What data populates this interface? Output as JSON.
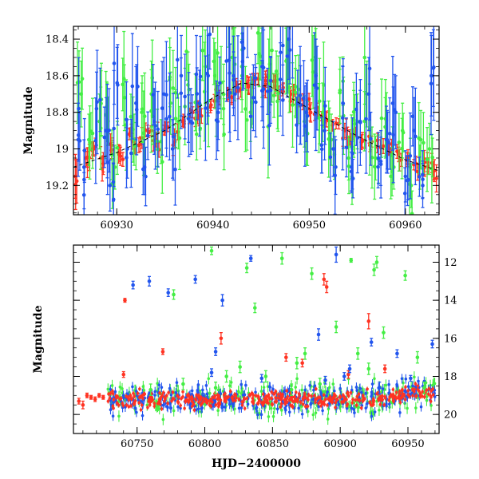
{
  "chart_data": [
    {
      "panel": "top",
      "type": "scatter",
      "title": "",
      "xlabel": "",
      "ylabel": "Magnitude",
      "xlim": [
        60925.5,
        60963.5
      ],
      "ylim": [
        19.36,
        18.33
      ],
      "y_inverted": true,
      "xticks": [
        60930,
        60940,
        60950,
        60960
      ],
      "xtick_labels": [
        "60930",
        "60940",
        "60950",
        "60960"
      ],
      "yticks": [
        18.4,
        18.6,
        18.8,
        19.0,
        19.2
      ],
      "ytick_labels": [
        "18.4",
        "18.6",
        "18.8",
        "19",
        "19.2"
      ],
      "model_curve": {
        "style": "dashed",
        "color": "#000000",
        "x": [
          60925.5,
          60930,
          60935,
          60940,
          60943,
          60946,
          60950,
          60955,
          60960,
          60963.5
        ],
        "y": [
          19.1,
          19.02,
          18.9,
          18.72,
          18.64,
          18.66,
          18.78,
          18.93,
          19.06,
          19.12
        ]
      },
      "series": [
        {
          "name": "red",
          "color": "#ff3322",
          "x": [
            60925.7,
            60926.8,
            60927.6,
            60928.6,
            60929.5,
            60930.4,
            60931.3,
            60932.3,
            60933.2,
            60934.1,
            60935.1,
            60936.0,
            60937.0,
            60937.9,
            60938.8,
            60939.8,
            60940.7,
            60941.6,
            60942.5,
            60943.5,
            60944.4,
            60945.3,
            60946.3,
            60947.2,
            60948.1,
            60949.0,
            60950.0,
            60950.9,
            60951.8,
            60952.8,
            60953.7,
            60954.6,
            60955.5,
            60956.5,
            60957.4,
            60958.3,
            60959.3,
            60960.2,
            60961.1,
            60962.0,
            60962.9
          ],
          "y": [
            19.15,
            19.05,
            19.0,
            19.08,
            18.98,
            19.04,
            18.92,
            18.98,
            18.9,
            18.95,
            18.88,
            18.93,
            18.85,
            18.8,
            18.82,
            18.76,
            18.72,
            18.7,
            18.66,
            18.64,
            18.62,
            18.66,
            18.63,
            18.68,
            18.7,
            18.74,
            18.78,
            18.8,
            18.84,
            18.86,
            18.9,
            18.92,
            18.95,
            18.96,
            18.99,
            19.0,
            19.03,
            19.05,
            19.08,
            19.1,
            19.12
          ],
          "err": [
            0.12,
            0.05,
            0.04,
            0.06,
            0.04,
            0.05,
            0.03,
            0.04,
            0.03,
            0.04,
            0.03,
            0.04,
            0.03,
            0.03,
            0.04,
            0.03,
            0.04,
            0.03,
            0.03,
            0.04,
            0.03,
            0.05,
            0.04,
            0.03,
            0.04,
            0.03,
            0.04,
            0.03,
            0.04,
            0.03,
            0.04,
            0.03,
            0.04,
            0.03,
            0.04,
            0.03,
            0.04,
            0.03,
            0.04,
            0.05,
            0.05
          ]
        },
        {
          "name": "green",
          "color": "#44ee44",
          "x": [
            60926.3,
            60927.1,
            60928.2,
            60929.0,
            60929.8,
            60930.8,
            60931.8,
            60932.6,
            60933.6,
            60934.6,
            60935.6,
            60936.4,
            60937.4,
            60938.3,
            60939.2,
            60940.2,
            60941.1,
            60942.0,
            60943.0,
            60943.9,
            60944.8,
            60945.8,
            60946.7,
            60947.6,
            60948.6,
            60949.5,
            60950.4,
            60951.4,
            60952.3,
            60953.2,
            60954.1,
            60955.0,
            60956.0,
            60956.9,
            60957.9,
            60958.8,
            60959.7,
            60960.6,
            60961.6,
            60962.5
          ],
          "y": [
            18.7,
            18.95,
            18.85,
            18.8,
            19.1,
            18.72,
            18.95,
            18.8,
            18.7,
            18.96,
            18.75,
            18.85,
            18.65,
            18.92,
            18.55,
            18.6,
            18.78,
            18.5,
            18.55,
            18.8,
            18.48,
            18.6,
            18.74,
            18.52,
            18.66,
            18.85,
            18.58,
            18.8,
            18.95,
            18.68,
            19.05,
            18.85,
            18.7,
            19.05,
            18.88,
            19.1,
            18.9,
            19.2,
            18.95,
            19.0
          ],
          "err": [
            0.18,
            0.14,
            0.15,
            0.16,
            0.12,
            0.18,
            0.14,
            0.16,
            0.18,
            0.12,
            0.17,
            0.15,
            0.18,
            0.14,
            0.2,
            0.18,
            0.15,
            0.2,
            0.18,
            0.16,
            0.18,
            0.2,
            0.15,
            0.18,
            0.17,
            0.14,
            0.2,
            0.16,
            0.14,
            0.18,
            0.12,
            0.15,
            0.18,
            0.12,
            0.16,
            0.12,
            0.15,
            0.12,
            0.16,
            0.14
          ]
        },
        {
          "name": "blue",
          "color": "#2255ee",
          "x": [
            60926.0,
            60926.6,
            60927.9,
            60928.9,
            60929.3,
            60930.1,
            60931.1,
            60932.0,
            60932.9,
            60933.9,
            60934.9,
            60935.8,
            60936.7,
            60937.7,
            60938.6,
            60939.5,
            60940.5,
            60941.4,
            60942.3,
            60943.2,
            60944.2,
            60945.1,
            60946.0,
            60947.0,
            60947.9,
            60948.8,
            60949.7,
            60950.7,
            60951.6,
            60952.5,
            60953.5,
            60954.4,
            60955.3,
            60956.2,
            60957.2,
            60958.1,
            60959.0,
            60960.0,
            60960.9,
            60961.8,
            60962.7
          ],
          "y": [
            18.95,
            19.1,
            18.78,
            18.9,
            19.2,
            18.65,
            19.0,
            18.75,
            19.1,
            18.85,
            18.7,
            19.0,
            18.6,
            18.85,
            18.75,
            18.6,
            18.85,
            18.52,
            18.7,
            18.45,
            18.72,
            18.55,
            18.68,
            18.62,
            18.4,
            18.75,
            18.8,
            18.6,
            18.9,
            19.0,
            18.75,
            19.1,
            18.85,
            18.7,
            19.05,
            18.95,
            18.8,
            19.15,
            18.9,
            19.2,
            18.6
          ],
          "err": [
            0.2,
            0.15,
            0.2,
            0.18,
            0.14,
            0.22,
            0.16,
            0.2,
            0.15,
            0.18,
            0.2,
            0.16,
            0.22,
            0.18,
            0.18,
            0.22,
            0.16,
            0.22,
            0.2,
            0.22,
            0.18,
            0.22,
            0.18,
            0.2,
            0.22,
            0.18,
            0.16,
            0.2,
            0.16,
            0.15,
            0.2,
            0.14,
            0.17,
            0.2,
            0.14,
            0.16,
            0.2,
            0.14,
            0.18,
            0.12,
            0.22
          ]
        }
      ]
    },
    {
      "panel": "bottom",
      "type": "scatter",
      "title": "",
      "xlabel": "HJD−2400000",
      "ylabel": "Magnitude",
      "xlim": [
        60703,
        60973
      ],
      "ylim": [
        21.0,
        11.1
      ],
      "y_inverted": true,
      "xticks": [
        60750,
        60800,
        60850,
        60900,
        60950
      ],
      "xtick_labels": [
        "60750",
        "60800",
        "60850",
        "60900",
        "60950"
      ],
      "yticks": [
        12,
        14,
        16,
        18,
        20
      ],
      "ytick_labels": [
        "12",
        "14",
        "16",
        "18",
        "20"
      ],
      "baseline": {
        "x_start": 60728,
        "x_end": 60970,
        "base_mag": 19.2,
        "scatter_red": 0.3,
        "scatter_blue": 0.5,
        "scatter_green": 0.6
      },
      "series": [
        {
          "name": "red",
          "color": "#ff3322",
          "x": [
            60707,
            60710,
            60713,
            60716,
            60719,
            60722,
            60725,
            60741,
            60769,
            60812,
            60860,
            60872,
            60888,
            60890,
            60906,
            60921,
            60933,
            60740
          ],
          "y": [
            19.3,
            19.5,
            19.0,
            19.1,
            19.2,
            19.0,
            19.1,
            14.0,
            16.7,
            16.0,
            17.0,
            17.3,
            12.9,
            13.3,
            17.9,
            15.1,
            17.6,
            17.9
          ],
          "err": [
            0.15,
            0.2,
            0.12,
            0.1,
            0.12,
            0.1,
            0.1,
            0.1,
            0.15,
            0.3,
            0.2,
            0.2,
            0.3,
            0.3,
            0.2,
            0.4,
            0.2,
            0.15
          ]
        },
        {
          "name": "green",
          "color": "#44ee44",
          "x": [
            60760,
            60777,
            60784,
            60805,
            60808,
            60816,
            60826,
            60831,
            60837,
            60845,
            60857,
            60864,
            60868,
            60874,
            60879,
            60885,
            60897,
            60908,
            60913,
            60921,
            60925,
            60927,
            60932,
            60948,
            60957,
            60962
          ],
          "y": [
            18.7,
            13.7,
            18.4,
            11.4,
            18.6,
            18.0,
            17.5,
            12.3,
            14.4,
            18.0,
            11.8,
            18.7,
            17.3,
            16.8,
            12.6,
            18.4,
            15.4,
            11.9,
            16.8,
            17.6,
            12.4,
            12.0,
            15.7,
            12.7,
            17.0,
            18.6
          ],
          "err": [
            0.3,
            0.25,
            0.3,
            0.2,
            0.3,
            0.3,
            0.3,
            0.25,
            0.25,
            0.3,
            0.3,
            0.3,
            0.3,
            0.3,
            0.3,
            0.3,
            0.3,
            0.1,
            0.3,
            0.3,
            0.3,
            0.3,
            0.3,
            0.25,
            0.3,
            0.3
          ]
        },
        {
          "name": "blue",
          "color": "#2255ee",
          "x": [
            60747,
            60759,
            60773,
            60793,
            60805,
            60808,
            60813,
            60834,
            60842,
            60884,
            60889,
            60897,
            60903,
            60907,
            60923,
            60929,
            60942,
            60952,
            60968
          ],
          "y": [
            13.2,
            13.0,
            13.6,
            12.9,
            17.8,
            16.7,
            14.0,
            11.8,
            18.1,
            15.8,
            18.2,
            11.6,
            18.0,
            17.6,
            16.2,
            18.6,
            16.8,
            18.1,
            16.3
          ],
          "err": [
            0.2,
            0.25,
            0.2,
            0.2,
            0.2,
            0.2,
            0.3,
            0.15,
            0.2,
            0.3,
            0.2,
            0.4,
            0.2,
            0.2,
            0.2,
            0.3,
            0.2,
            0.15,
            0.2
          ]
        }
      ]
    }
  ]
}
